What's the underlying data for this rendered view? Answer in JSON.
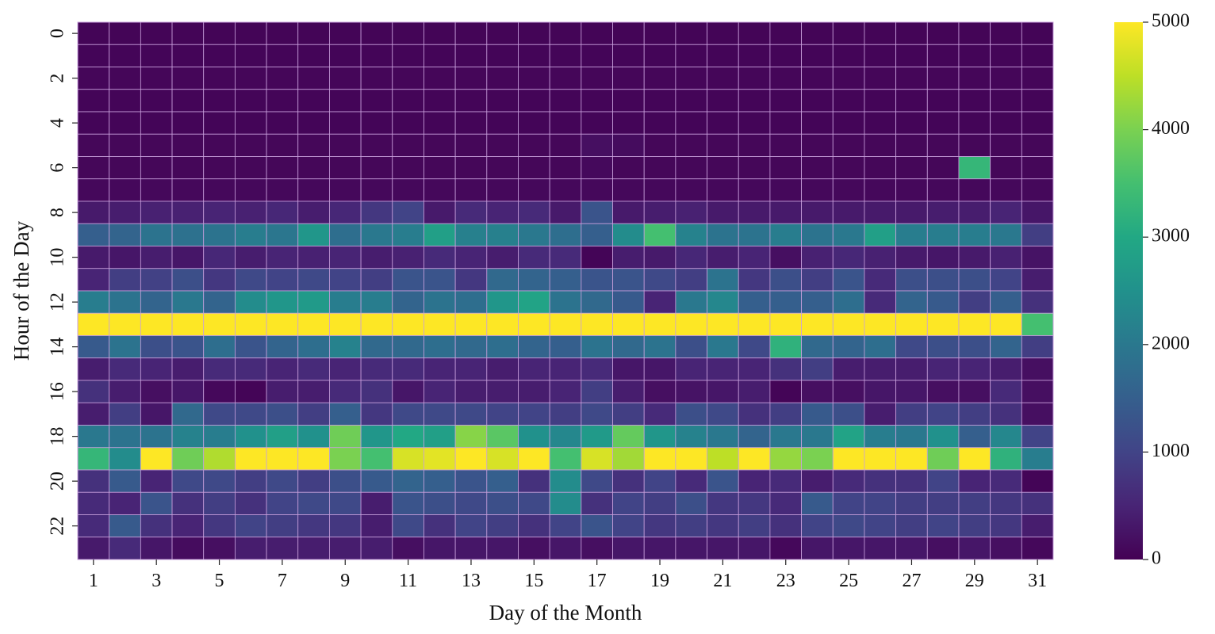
{
  "chart_data": {
    "type": "heatmap",
    "xlabel": "Day of the Month",
    "ylabel": "Hour of the Day",
    "x": [
      1,
      2,
      3,
      4,
      5,
      6,
      7,
      8,
      9,
      10,
      11,
      12,
      13,
      14,
      15,
      16,
      17,
      18,
      19,
      20,
      21,
      22,
      23,
      24,
      25,
      26,
      27,
      28,
      29,
      30,
      31
    ],
    "y": [
      0,
      1,
      2,
      3,
      4,
      5,
      6,
      7,
      8,
      9,
      10,
      11,
      12,
      13,
      14,
      15,
      16,
      17,
      18,
      19,
      20,
      21,
      22,
      23
    ],
    "x_tick_labels": [
      "1",
      "3",
      "5",
      "7",
      "9",
      "11",
      "13",
      "15",
      "17",
      "19",
      "21",
      "23",
      "25",
      "27",
      "29",
      "31"
    ],
    "y_tick_labels": [
      "0",
      "2",
      "4",
      "6",
      "8",
      "10",
      "12",
      "14",
      "16",
      "18",
      "20",
      "22"
    ],
    "colorbar": {
      "min": 0,
      "max": 5000,
      "ticks": [
        0,
        1000,
        2000,
        3000,
        4000,
        5000
      ],
      "colormap": "viridis"
    },
    "grid": true,
    "values": [
      [
        50,
        50,
        50,
        50,
        50,
        50,
        50,
        50,
        50,
        50,
        50,
        50,
        50,
        50,
        50,
        50,
        50,
        50,
        50,
        50,
        50,
        50,
        50,
        50,
        50,
        50,
        50,
        50,
        50,
        50,
        50
      ],
      [
        60,
        60,
        60,
        60,
        60,
        60,
        60,
        60,
        60,
        60,
        60,
        60,
        60,
        60,
        60,
        60,
        60,
        60,
        60,
        60,
        60,
        60,
        60,
        60,
        60,
        60,
        60,
        60,
        60,
        60,
        60
      ],
      [
        70,
        70,
        70,
        70,
        70,
        70,
        70,
        70,
        70,
        70,
        70,
        70,
        70,
        70,
        70,
        70,
        70,
        70,
        70,
        70,
        70,
        70,
        70,
        70,
        70,
        70,
        70,
        70,
        70,
        70,
        70
      ],
      [
        60,
        60,
        60,
        60,
        60,
        60,
        60,
        60,
        60,
        60,
        60,
        60,
        60,
        60,
        60,
        60,
        60,
        60,
        60,
        60,
        60,
        60,
        60,
        60,
        60,
        60,
        60,
        60,
        60,
        60,
        60
      ],
      [
        60,
        60,
        60,
        60,
        60,
        60,
        60,
        60,
        60,
        60,
        60,
        60,
        60,
        60,
        60,
        60,
        60,
        60,
        60,
        60,
        60,
        60,
        60,
        60,
        60,
        60,
        60,
        60,
        60,
        60,
        60
      ],
      [
        80,
        80,
        80,
        80,
        80,
        80,
        80,
        80,
        80,
        80,
        80,
        80,
        80,
        80,
        80,
        80,
        200,
        150,
        80,
        80,
        80,
        80,
        80,
        80,
        80,
        80,
        80,
        80,
        80,
        80,
        80
      ],
      [
        80,
        80,
        80,
        80,
        80,
        80,
        80,
        80,
        80,
        80,
        80,
        80,
        80,
        80,
        80,
        80,
        120,
        80,
        80,
        80,
        80,
        80,
        80,
        80,
        80,
        80,
        80,
        80,
        3300,
        80,
        80
      ],
      [
        100,
        100,
        100,
        100,
        100,
        100,
        100,
        100,
        100,
        100,
        100,
        100,
        100,
        100,
        100,
        100,
        100,
        100,
        100,
        100,
        100,
        100,
        100,
        100,
        100,
        100,
        100,
        100,
        100,
        100,
        100
      ],
      [
        350,
        400,
        450,
        450,
        500,
        450,
        550,
        400,
        550,
        800,
        1000,
        350,
        600,
        500,
        600,
        350,
        1300,
        350,
        400,
        450,
        350,
        350,
        350,
        350,
        350,
        350,
        350,
        400,
        400,
        500,
        300
      ],
      [
        1500,
        1600,
        1900,
        1850,
        1900,
        2100,
        1950,
        2600,
        1800,
        2000,
        2100,
        2800,
        2150,
        2150,
        2000,
        1800,
        1500,
        2400,
        3500,
        2200,
        1900,
        1900,
        2100,
        1900,
        2000,
        2800,
        2100,
        2100,
        2100,
        2000,
        900
      ],
      [
        350,
        300,
        400,
        300,
        550,
        400,
        500,
        450,
        500,
        400,
        450,
        600,
        500,
        400,
        600,
        600,
        50,
        400,
        350,
        550,
        400,
        500,
        200,
        450,
        550,
        450,
        350,
        300,
        350,
        450,
        250
      ],
      [
        500,
        900,
        950,
        1200,
        800,
        1100,
        1000,
        1100,
        1000,
        900,
        1300,
        1300,
        800,
        1700,
        1600,
        1500,
        1300,
        1300,
        1100,
        900,
        1900,
        800,
        1200,
        900,
        1300,
        600,
        1200,
        1200,
        1200,
        1000,
        400
      ],
      [
        2100,
        1900,
        1600,
        2000,
        1600,
        2400,
        2600,
        2700,
        2100,
        2100,
        1600,
        1900,
        1800,
        2600,
        2900,
        1900,
        1700,
        1400,
        500,
        2000,
        2300,
        1500,
        1500,
        1500,
        1800,
        600,
        1600,
        1400,
        900,
        1500,
        700
      ],
      [
        5000,
        5000,
        5000,
        5000,
        5000,
        5000,
        5000,
        5000,
        5000,
        5000,
        5000,
        5000,
        5000,
        5000,
        5000,
        5000,
        5000,
        5000,
        5000,
        5000,
        5000,
        5000,
        5000,
        5000,
        5000,
        5000,
        5000,
        5000,
        5000,
        5000,
        3500
      ],
      [
        1400,
        1900,
        1200,
        1300,
        1800,
        1300,
        1600,
        1800,
        2200,
        1700,
        1700,
        1800,
        1700,
        1800,
        1600,
        1500,
        1900,
        1700,
        1900,
        1200,
        2000,
        1100,
        3200,
        1700,
        1600,
        1800,
        1100,
        1200,
        1200,
        1600,
        900
      ],
      [
        400,
        600,
        500,
        400,
        600,
        600,
        500,
        600,
        500,
        600,
        600,
        500,
        500,
        400,
        500,
        500,
        600,
        300,
        300,
        500,
        500,
        500,
        700,
        900,
        400,
        400,
        400,
        500,
        500,
        400,
        200
      ],
      [
        700,
        400,
        200,
        300,
        100,
        50,
        400,
        400,
        600,
        700,
        300,
        500,
        400,
        400,
        400,
        500,
        900,
        400,
        200,
        250,
        300,
        400,
        50,
        200,
        200,
        300,
        300,
        200,
        200,
        600,
        200
      ],
      [
        400,
        900,
        300,
        1700,
        1100,
        1100,
        1200,
        900,
        1500,
        800,
        1100,
        1100,
        1100,
        1000,
        1000,
        900,
        1100,
        900,
        600,
        1200,
        1100,
        700,
        900,
        1400,
        1200,
        400,
        900,
        1000,
        900,
        700,
        200
      ],
      [
        2000,
        1900,
        1900,
        2200,
        2100,
        2500,
        2800,
        2500,
        3900,
        2600,
        3000,
        2800,
        4100,
        3700,
        2500,
        2300,
        2700,
        3800,
        2600,
        2200,
        2000,
        1600,
        2000,
        2000,
        2900,
        2100,
        2000,
        2500,
        1500,
        2300,
        1000
      ],
      [
        3300,
        2400,
        5000,
        3900,
        4400,
        5000,
        5000,
        5000,
        4000,
        3500,
        4700,
        4800,
        5000,
        4700,
        5000,
        3500,
        4700,
        4300,
        5000,
        5000,
        4500,
        5000,
        4200,
        4000,
        5000,
        5000,
        5000,
        3900,
        5000,
        3200,
        2100
      ],
      [
        700,
        1400,
        500,
        1100,
        1100,
        900,
        1100,
        900,
        1200,
        1400,
        1600,
        1500,
        1300,
        1500,
        700,
        2400,
        1100,
        700,
        1000,
        600,
        1300,
        500,
        600,
        400,
        600,
        700,
        700,
        1000,
        500,
        600,
        50
      ],
      [
        600,
        500,
        1300,
        700,
        900,
        700,
        1000,
        1100,
        1100,
        400,
        1300,
        1200,
        1100,
        1200,
        1100,
        2400,
        700,
        1000,
        900,
        1200,
        800,
        800,
        600,
        1400,
        1000,
        1000,
        900,
        900,
        900,
        800,
        700
      ],
      [
        600,
        1400,
        700,
        500,
        800,
        1000,
        900,
        800,
        800,
        400,
        1100,
        700,
        1000,
        900,
        700,
        1000,
        1300,
        1000,
        800,
        900,
        800,
        900,
        700,
        1000,
        1100,
        1000,
        900,
        1000,
        900,
        800,
        400
      ],
      [
        350,
        600,
        300,
        150,
        200,
        400,
        400,
        400,
        400,
        400,
        200,
        300,
        300,
        300,
        200,
        300,
        200,
        300,
        300,
        300,
        300,
        300,
        100,
        300,
        300,
        300,
        300,
        200,
        300,
        200,
        100
      ]
    ]
  }
}
